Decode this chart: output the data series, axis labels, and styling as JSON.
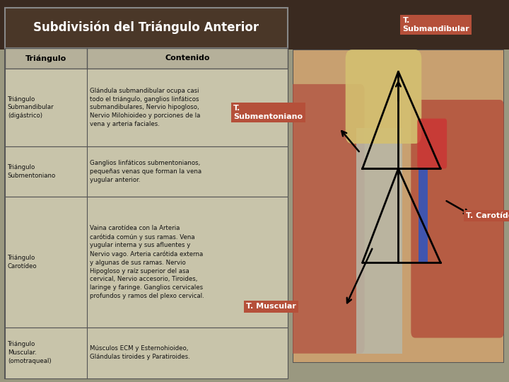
{
  "title": "Subdivisión del Triángulo Anterior",
  "title_bg": "#4a3728",
  "title_color": "#ffffff",
  "header_bg": "#b5b09a",
  "header_color": "#000000",
  "row_bg": "#c8c4aa",
  "table_border": "#555555",
  "slide_bg": "#9a9880",
  "dark_top_bg": "#3a2a20",
  "col1_header": "Triángulo",
  "col2_header": "Contenido",
  "rows": [
    {
      "triangle": "Triángulo\nSubmandibular\n(digástrico)",
      "content": "Glándula submandibular ocupa casi\ntodo el triángulo, ganglios linfáticos\nsubmandibulares, Nervio hipogloso,\nNervio Milohioideo y porciones de la\nvena y arteria faciales."
    },
    {
      "triangle": "Triángulo\nSubmentoniano",
      "content": "Ganglios linfáticos submentonianos,\npequeñas venas que forman la vena\nyugular anterior."
    },
    {
      "triangle": "Triángulo\nCarotídeo",
      "content": "Vaina carotídea con la Arteria\ncarótida común y sus ramas. Vena\nyugular interna y sus afluentes y\nNervio vago. Arteria carótida externa\ny algunas de sus ramas. Nervio\nHipogloso y raíz superior del asa\ncervical, Nervio accesorio, Tiroides,\nlaringe y faringe. Ganglios cervicales\nprofundos y ramos del plexo cervical."
    },
    {
      "triangle": "Triángulo\nMuscular.\n(omotraqueal)",
      "content": "Músculos ECM y Esternohioideo,\nGlándulas tiroides y Paratiroides."
    }
  ],
  "label_bg": "#b5503a",
  "label_color": "#ffffff"
}
